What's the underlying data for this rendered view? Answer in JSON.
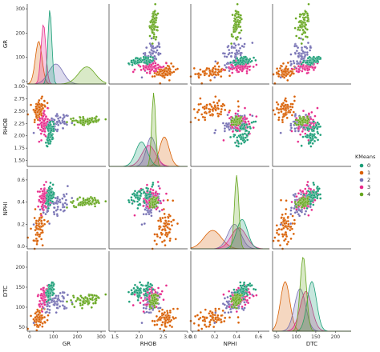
{
  "chart_data": {
    "type": "scatter",
    "kind": "pairplot",
    "variables": [
      "GR",
      "RHOB",
      "NPHI",
      "DTC"
    ],
    "diagonal": "kde",
    "hue": "KMeans",
    "legend": {
      "title": "KMeans",
      "placement": "center-right",
      "entries": [
        "0",
        "1",
        "2",
        "3",
        "4"
      ]
    },
    "palette": {
      "0": "#1b9e77",
      "1": "#d95f02",
      "2": "#7570b3",
      "3": "#e7298a",
      "4": "#66a61e"
    },
    "axes": {
      "GR": {
        "range": [
          -10,
          320
        ],
        "ticks": [
          0,
          100,
          200,
          300
        ],
        "tick_labels": [
          "0",
          "100",
          "200",
          "300"
        ]
      },
      "RHOB": {
        "range": [
          1.38,
          3.0
        ],
        "ticks": [
          1.5,
          2.0,
          2.5,
          3.0
        ],
        "tick_labels": [
          "1.5",
          "2.0",
          "2.5",
          "3.0"
        ],
        "y_ticks": [
          1.5,
          1.75,
          2.0,
          2.25,
          2.5,
          2.75,
          3.0
        ],
        "y_tick_labels": [
          "1.50",
          "1.75",
          "2.00",
          "2.25",
          "2.50",
          "2.75",
          "3.00"
        ]
      },
      "NPHI": {
        "range": [
          -0.02,
          0.7
        ],
        "ticks": [
          0.0,
          0.2,
          0.4,
          0.6
        ],
        "tick_labels": [
          "0.0",
          "0.2",
          "0.4",
          "0.6"
        ]
      },
      "DTC": {
        "range": [
          40,
          240
        ],
        "ticks": [
          50,
          100,
          150,
          200
        ],
        "tick_labels": [
          "50",
          "100",
          "150",
          "200"
        ]
      }
    },
    "clusters": [
      {
        "name": "0",
        "GR": [
          85,
          8
        ],
        "RHOB": [
          2.05,
          0.12
        ],
        "NPHI": [
          0.45,
          0.05
        ],
        "DTC": [
          140,
          12
        ]
      },
      {
        "name": "1",
        "GR": [
          38,
          14
        ],
        "RHOB": [
          2.52,
          0.1
        ],
        "NPHI": [
          0.18,
          0.08
        ],
        "DTC": [
          72,
          12
        ]
      },
      {
        "name": "2",
        "GR": [
          110,
          30
        ],
        "RHOB": [
          2.25,
          0.1
        ],
        "NPHI": [
          0.38,
          0.06
        ],
        "DTC": [
          110,
          14
        ]
      },
      {
        "name": "3",
        "GR": [
          58,
          10
        ],
        "RHOB": [
          2.2,
          0.14
        ],
        "NPHI": [
          0.42,
          0.07
        ],
        "DTC": [
          125,
          15
        ]
      },
      {
        "name": "4",
        "GR": [
          240,
          35
        ],
        "RHOB": [
          2.3,
          0.04
        ],
        "NPHI": [
          0.4,
          0.02
        ],
        "DTC": [
          118,
          8
        ]
      }
    ]
  }
}
